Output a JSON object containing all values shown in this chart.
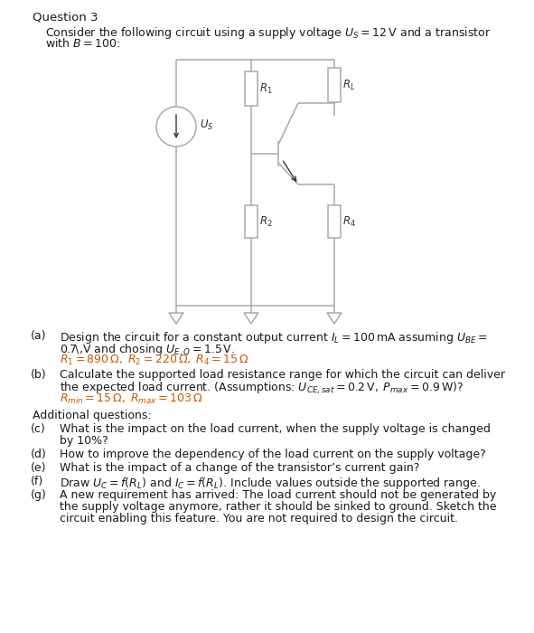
{
  "bg_color": "#ffffff",
  "text_color": "#1a1a1a",
  "answer_color": "#cc5500",
  "circ_color": "#aaaaaa",
  "title": "Question 3",
  "intro_line1": "Consider the following circuit using a supply voltage $U_S = 12\\,\\mathrm{V}$ and a transistor",
  "intro_line2": "with $B = 100$:",
  "a_label": "(a)",
  "a_line1": "Design the circuit for a constant output current $I_L = 100\\,\\mathrm{mA}$ assuming $U_{BE} =$",
  "a_line2": "0.7\\,V and chosing $U_{E,Q} = 1.5\\,\\mathrm{V}$.",
  "a_ans": "$R_1 = 890\\,\\Omega,\\; R_2 = 220\\,\\Omega,\\; R_4 = 15\\,\\Omega$",
  "b_label": "(b)",
  "b_line1": "Calculate the supported load resistance range for which the circuit can deliver",
  "b_line2": "the expected load current. (Assumptions: $U_{CE,sat} = 0.2\\,\\mathrm{V},\\; P_{max} = 0.9\\,\\mathrm{W}$)?",
  "b_ans": "$R_{min} = 15\\,\\Omega,\\; R_{max} = 103\\,\\Omega$",
  "add_label": "Additional questions:",
  "c_label": "(c)",
  "c_line1": "What is the impact on the load current, when the supply voltage is changed",
  "c_line2": "by 10%?",
  "d_label": "(d)",
  "d_line": "How to improve the dependency of the load current on the supply voltage?",
  "e_label": "(e)",
  "e_line": "What is the impact of a change of the transistor’s current gain?",
  "f_label": "(f)",
  "f_line": "Draw $U_C = f(R_L)$ and $I_C = f(R_L)$. Include values outside the supported range.",
  "g_label": "(g)",
  "g_line1": "A new requirement has arrived: The load current should not be generated by",
  "g_line2": "the supply voltage anymore, rather it should be sinked to ground. Sketch the",
  "g_line3": "circuit enabling this feature. You are not required to design the circuit.",
  "figw": 5.91,
  "figh": 7.0,
  "dpi": 100
}
